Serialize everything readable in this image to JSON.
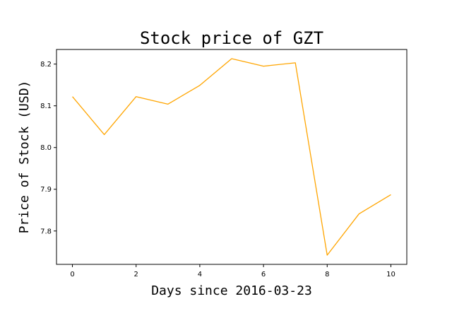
{
  "chart_data": {
    "type": "line",
    "title": "Stock price of GZT",
    "xlabel": "Days since 2016-03-23",
    "ylabel": "Price of Stock (USD)",
    "x": [
      0,
      1,
      2,
      3,
      4,
      5,
      6,
      7,
      8,
      9,
      10
    ],
    "xticks": [
      "0",
      "2",
      "4",
      "6",
      "8",
      "10"
    ],
    "yticks": [
      "7.8",
      "7.9",
      "8.0",
      "8.1",
      "8.2"
    ],
    "xlim": [
      -0.5,
      10.5
    ],
    "ylim": [
      7.72,
      8.235
    ],
    "grid": false,
    "series": [
      {
        "color": "#FFA500",
        "values": [
          8.122,
          8.031,
          8.122,
          8.104,
          8.149,
          8.213,
          8.195,
          8.203,
          7.742,
          7.841,
          7.887
        ]
      }
    ]
  }
}
